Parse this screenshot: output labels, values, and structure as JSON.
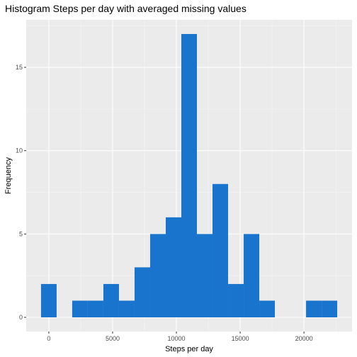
{
  "chart_data": {
    "type": "bar",
    "title": "Histogram Steps per day with averaged missing values",
    "xlabel": "Steps per day",
    "ylabel": "Frequency",
    "bin_width": 1222,
    "bins": [
      {
        "start": -611,
        "end": 611,
        "count": 2
      },
      {
        "start": 611,
        "end": 1833,
        "count": 0
      },
      {
        "start": 1833,
        "end": 3055,
        "count": 1
      },
      {
        "start": 3055,
        "end": 4277,
        "count": 1
      },
      {
        "start": 4277,
        "end": 5499,
        "count": 2
      },
      {
        "start": 5499,
        "end": 6721,
        "count": 1
      },
      {
        "start": 6721,
        "end": 7943,
        "count": 3
      },
      {
        "start": 7943,
        "end": 9165,
        "count": 5
      },
      {
        "start": 9165,
        "end": 10387,
        "count": 6
      },
      {
        "start": 10387,
        "end": 11609,
        "count": 17
      },
      {
        "start": 11609,
        "end": 12831,
        "count": 5
      },
      {
        "start": 12831,
        "end": 14053,
        "count": 8
      },
      {
        "start": 14053,
        "end": 15275,
        "count": 2
      },
      {
        "start": 15275,
        "end": 16497,
        "count": 5
      },
      {
        "start": 16497,
        "end": 17719,
        "count": 1
      },
      {
        "start": 17719,
        "end": 18941,
        "count": 0
      },
      {
        "start": 18941,
        "end": 20163,
        "count": 0
      },
      {
        "start": 20163,
        "end": 21385,
        "count": 1
      },
      {
        "start": 21385,
        "end": 22607,
        "count": 1
      }
    ],
    "xlim": [
      -1772,
      23768
    ],
    "ylim": [
      -0.85,
      17.85
    ],
    "x_ticks": [
      0,
      5000,
      10000,
      15000,
      20000
    ],
    "x_tick_labels": [
      "0",
      "5000",
      "10000",
      "15000",
      "20000"
    ],
    "y_ticks": [
      0,
      5,
      10,
      15
    ],
    "y_tick_labels": [
      "0",
      "5",
      "10",
      "15"
    ],
    "grid": true,
    "legend": "none",
    "colors": {
      "bar": "#1874CD",
      "panel": "#EBEBEB",
      "grid_major": "#FFFFFF",
      "grid_minor": "#F5F5F5",
      "tick": "#333333",
      "text": "#4D4D4D"
    }
  }
}
